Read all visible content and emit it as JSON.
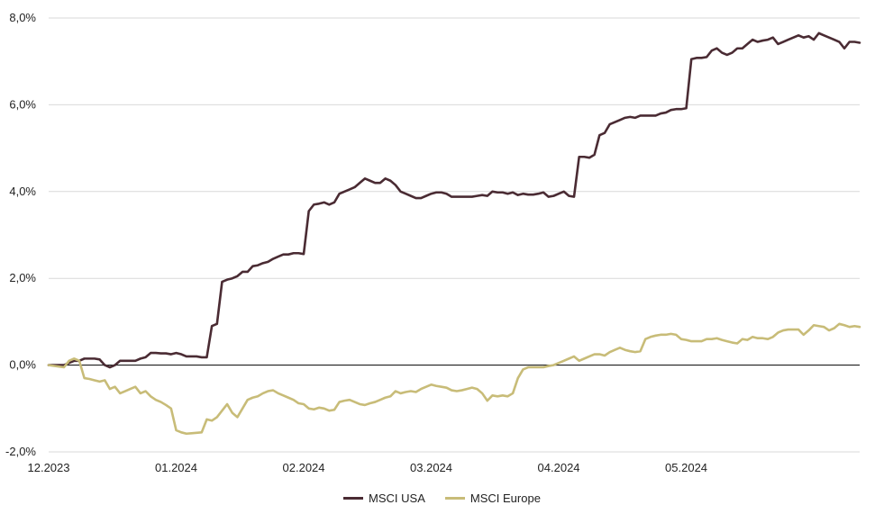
{
  "chart_data": {
    "type": "line",
    "title": "",
    "xlabel": "",
    "ylabel": "",
    "ylim": [
      -2.0,
      8.0
    ],
    "yticks": [
      -2.0,
      0.0,
      2.0,
      4.0,
      6.0,
      8.0
    ],
    "ytick_labels": [
      "-2,0%",
      "0,0%",
      "2,0%",
      "4,0%",
      "6,0%",
      "8,0%"
    ],
    "xlim": [
      0,
      148
    ],
    "xticks": [
      0,
      25,
      50,
      75,
      100,
      125
    ],
    "xtick_labels": [
      "12.2023",
      "01.2024",
      "02.2024",
      "03.2024",
      "04.2024",
      "05.2024"
    ],
    "grid": "horizontal",
    "zero_line": true,
    "legend_position": "bottom-center",
    "series": [
      {
        "name": "MSCI USA",
        "color": "#4a2b33",
        "points": [
          [
            0,
            0.0
          ],
          [
            3,
            0.0
          ],
          [
            4,
            0.05
          ],
          [
            5,
            0.1
          ],
          [
            6,
            0.1
          ],
          [
            7,
            0.15
          ],
          [
            8,
            0.15
          ],
          [
            9,
            0.15
          ],
          [
            10,
            0.13
          ],
          [
            11,
            0.0
          ],
          [
            12,
            -0.05
          ],
          [
            13,
            0.0
          ],
          [
            14,
            0.1
          ],
          [
            15,
            0.1
          ],
          [
            16,
            0.1
          ],
          [
            17,
            0.1
          ],
          [
            18,
            0.15
          ],
          [
            19,
            0.18
          ],
          [
            20,
            0.28
          ],
          [
            21,
            0.28
          ],
          [
            22,
            0.27
          ],
          [
            23,
            0.27
          ],
          [
            24,
            0.25
          ],
          [
            25,
            0.28
          ],
          [
            26,
            0.25
          ],
          [
            27,
            0.2
          ],
          [
            28,
            0.2
          ],
          [
            29,
            0.2
          ],
          [
            30,
            0.18
          ],
          [
            31,
            0.18
          ],
          [
            32,
            0.9
          ],
          [
            33,
            0.95
          ],
          [
            34,
            1.92
          ],
          [
            35,
            1.97
          ],
          [
            36,
            2.0
          ],
          [
            37,
            2.05
          ],
          [
            38,
            2.15
          ],
          [
            39,
            2.15
          ],
          [
            40,
            2.28
          ],
          [
            41,
            2.3
          ],
          [
            42,
            2.35
          ],
          [
            43,
            2.38
          ],
          [
            44,
            2.45
          ],
          [
            45,
            2.5
          ],
          [
            46,
            2.55
          ],
          [
            47,
            2.55
          ],
          [
            48,
            2.58
          ],
          [
            49,
            2.58
          ],
          [
            50,
            2.56
          ],
          [
            51,
            3.55
          ],
          [
            52,
            3.7
          ],
          [
            53,
            3.72
          ],
          [
            54,
            3.75
          ],
          [
            55,
            3.7
          ],
          [
            56,
            3.75
          ],
          [
            57,
            3.95
          ],
          [
            58,
            4.0
          ],
          [
            59,
            4.05
          ],
          [
            60,
            4.1
          ],
          [
            61,
            4.2
          ],
          [
            62,
            4.3
          ],
          [
            63,
            4.25
          ],
          [
            64,
            4.2
          ],
          [
            65,
            4.2
          ],
          [
            66,
            4.3
          ],
          [
            67,
            4.25
          ],
          [
            68,
            4.15
          ],
          [
            69,
            4.0
          ],
          [
            70,
            3.95
          ],
          [
            71,
            3.9
          ],
          [
            72,
            3.85
          ],
          [
            73,
            3.85
          ],
          [
            74,
            3.9
          ],
          [
            75,
            3.95
          ],
          [
            76,
            3.98
          ],
          [
            77,
            3.98
          ],
          [
            78,
            3.95
          ],
          [
            79,
            3.88
          ],
          [
            80,
            3.88
          ],
          [
            81,
            3.88
          ],
          [
            82,
            3.88
          ],
          [
            83,
            3.88
          ],
          [
            84,
            3.9
          ],
          [
            85,
            3.92
          ],
          [
            86,
            3.9
          ],
          [
            87,
            4.0
          ],
          [
            88,
            3.98
          ],
          [
            89,
            3.98
          ],
          [
            90,
            3.95
          ],
          [
            91,
            3.98
          ],
          [
            92,
            3.92
          ],
          [
            93,
            3.95
          ],
          [
            94,
            3.93
          ],
          [
            95,
            3.93
          ],
          [
            96,
            3.95
          ],
          [
            97,
            3.98
          ],
          [
            98,
            3.88
          ],
          [
            99,
            3.9
          ],
          [
            100,
            3.95
          ],
          [
            101,
            4.0
          ],
          [
            102,
            3.9
          ],
          [
            103,
            3.88
          ],
          [
            104,
            4.8
          ],
          [
            105,
            4.8
          ],
          [
            106,
            4.78
          ],
          [
            107,
            4.85
          ],
          [
            108,
            5.3
          ],
          [
            109,
            5.35
          ],
          [
            110,
            5.55
          ],
          [
            111,
            5.6
          ],
          [
            112,
            5.65
          ],
          [
            113,
            5.7
          ],
          [
            114,
            5.72
          ],
          [
            115,
            5.7
          ],
          [
            116,
            5.75
          ],
          [
            117,
            5.75
          ],
          [
            118,
            5.75
          ],
          [
            119,
            5.75
          ],
          [
            120,
            5.8
          ],
          [
            121,
            5.82
          ],
          [
            122,
            5.88
          ],
          [
            123,
            5.9
          ],
          [
            124,
            5.9
          ],
          [
            125,
            5.92
          ],
          [
            126,
            7.05
          ],
          [
            127,
            7.08
          ],
          [
            128,
            7.08
          ],
          [
            129,
            7.1
          ],
          [
            130,
            7.25
          ],
          [
            131,
            7.3
          ],
          [
            132,
            7.2
          ],
          [
            133,
            7.15
          ],
          [
            134,
            7.2
          ],
          [
            135,
            7.3
          ],
          [
            136,
            7.3
          ],
          [
            137,
            7.4
          ],
          [
            138,
            7.5
          ],
          [
            139,
            7.45
          ],
          [
            140,
            7.48
          ],
          [
            141,
            7.5
          ],
          [
            142,
            7.55
          ],
          [
            143,
            7.4
          ],
          [
            144,
            7.45
          ],
          [
            145,
            7.5
          ],
          [
            146,
            7.55
          ],
          [
            147,
            7.6
          ],
          [
            148,
            7.55
          ],
          [
            149,
            7.58
          ],
          [
            150,
            7.5
          ],
          [
            151,
            7.65
          ],
          [
            152,
            7.6
          ],
          [
            153,
            7.55
          ],
          [
            154,
            7.5
          ],
          [
            155,
            7.45
          ],
          [
            156,
            7.3
          ],
          [
            157,
            7.45
          ],
          [
            158,
            7.45
          ],
          [
            159,
            7.43
          ]
        ]
      },
      {
        "name": "MSCI Europe",
        "color": "#c8bc78",
        "points": [
          [
            0,
            0.0
          ],
          [
            3,
            -0.05
          ],
          [
            4,
            0.1
          ],
          [
            5,
            0.15
          ],
          [
            6,
            0.1
          ],
          [
            7,
            -0.3
          ],
          [
            8,
            -0.32
          ],
          [
            9,
            -0.35
          ],
          [
            10,
            -0.38
          ],
          [
            11,
            -0.35
          ],
          [
            12,
            -0.55
          ],
          [
            13,
            -0.5
          ],
          [
            14,
            -0.65
          ],
          [
            15,
            -0.6
          ],
          [
            16,
            -0.55
          ],
          [
            17,
            -0.5
          ],
          [
            18,
            -0.65
          ],
          [
            19,
            -0.6
          ],
          [
            20,
            -0.72
          ],
          [
            21,
            -0.8
          ],
          [
            22,
            -0.85
          ],
          [
            23,
            -0.92
          ],
          [
            24,
            -1.0
          ],
          [
            25,
            -1.5
          ],
          [
            26,
            -1.55
          ],
          [
            27,
            -1.58
          ],
          [
            28,
            -1.57
          ],
          [
            29,
            -1.56
          ],
          [
            30,
            -1.55
          ],
          [
            31,
            -1.25
          ],
          [
            32,
            -1.28
          ],
          [
            33,
            -1.2
          ],
          [
            34,
            -1.05
          ],
          [
            35,
            -0.9
          ],
          [
            36,
            -1.1
          ],
          [
            37,
            -1.2
          ],
          [
            38,
            -1.0
          ],
          [
            39,
            -0.8
          ],
          [
            40,
            -0.75
          ],
          [
            41,
            -0.72
          ],
          [
            42,
            -0.65
          ],
          [
            43,
            -0.6
          ],
          [
            44,
            -0.58
          ],
          [
            45,
            -0.65
          ],
          [
            46,
            -0.7
          ],
          [
            47,
            -0.75
          ],
          [
            48,
            -0.8
          ],
          [
            49,
            -0.88
          ],
          [
            50,
            -0.9
          ],
          [
            51,
            -1.0
          ],
          [
            52,
            -1.02
          ],
          [
            53,
            -0.98
          ],
          [
            54,
            -1.0
          ],
          [
            55,
            -1.05
          ],
          [
            56,
            -1.03
          ],
          [
            57,
            -0.85
          ],
          [
            58,
            -0.82
          ],
          [
            59,
            -0.8
          ],
          [
            60,
            -0.85
          ],
          [
            61,
            -0.9
          ],
          [
            62,
            -0.92
          ],
          [
            63,
            -0.88
          ],
          [
            64,
            -0.85
          ],
          [
            65,
            -0.8
          ],
          [
            66,
            -0.75
          ],
          [
            67,
            -0.72
          ],
          [
            68,
            -0.6
          ],
          [
            69,
            -0.65
          ],
          [
            70,
            -0.62
          ],
          [
            71,
            -0.6
          ],
          [
            72,
            -0.62
          ],
          [
            73,
            -0.55
          ],
          [
            74,
            -0.5
          ],
          [
            75,
            -0.45
          ],
          [
            76,
            -0.48
          ],
          [
            77,
            -0.5
          ],
          [
            78,
            -0.52
          ],
          [
            79,
            -0.58
          ],
          [
            80,
            -0.6
          ],
          [
            81,
            -0.58
          ],
          [
            82,
            -0.55
          ],
          [
            83,
            -0.52
          ],
          [
            84,
            -0.55
          ],
          [
            85,
            -0.65
          ],
          [
            86,
            -0.82
          ],
          [
            87,
            -0.7
          ],
          [
            88,
            -0.72
          ],
          [
            89,
            -0.7
          ],
          [
            90,
            -0.72
          ],
          [
            91,
            -0.65
          ],
          [
            92,
            -0.3
          ],
          [
            93,
            -0.1
          ],
          [
            94,
            -0.05
          ],
          [
            95,
            -0.05
          ],
          [
            96,
            -0.05
          ],
          [
            97,
            -0.05
          ],
          [
            98,
            -0.02
          ],
          [
            99,
            0.0
          ],
          [
            100,
            0.05
          ],
          [
            101,
            0.1
          ],
          [
            102,
            0.15
          ],
          [
            103,
            0.2
          ],
          [
            104,
            0.1
          ],
          [
            105,
            0.15
          ],
          [
            106,
            0.2
          ],
          [
            107,
            0.25
          ],
          [
            108,
            0.25
          ],
          [
            109,
            0.22
          ],
          [
            110,
            0.3
          ],
          [
            111,
            0.35
          ],
          [
            112,
            0.4
          ],
          [
            113,
            0.35
          ],
          [
            114,
            0.32
          ],
          [
            115,
            0.3
          ],
          [
            116,
            0.32
          ],
          [
            117,
            0.6
          ],
          [
            118,
            0.65
          ],
          [
            119,
            0.68
          ],
          [
            120,
            0.7
          ],
          [
            121,
            0.7
          ],
          [
            122,
            0.72
          ],
          [
            123,
            0.7
          ],
          [
            124,
            0.6
          ],
          [
            125,
            0.58
          ],
          [
            126,
            0.55
          ],
          [
            127,
            0.55
          ],
          [
            128,
            0.55
          ],
          [
            129,
            0.6
          ],
          [
            130,
            0.6
          ],
          [
            131,
            0.62
          ],
          [
            132,
            0.58
          ],
          [
            133,
            0.55
          ],
          [
            134,
            0.52
          ],
          [
            135,
            0.5
          ],
          [
            136,
            0.6
          ],
          [
            137,
            0.58
          ],
          [
            138,
            0.65
          ],
          [
            139,
            0.62
          ],
          [
            140,
            0.62
          ],
          [
            141,
            0.6
          ],
          [
            142,
            0.65
          ],
          [
            143,
            0.75
          ],
          [
            144,
            0.8
          ],
          [
            145,
            0.82
          ],
          [
            146,
            0.82
          ],
          [
            147,
            0.82
          ],
          [
            148,
            0.7
          ],
          [
            149,
            0.8
          ],
          [
            150,
            0.92
          ],
          [
            151,
            0.9
          ],
          [
            152,
            0.88
          ],
          [
            153,
            0.8
          ],
          [
            154,
            0.85
          ],
          [
            155,
            0.95
          ],
          [
            156,
            0.92
          ],
          [
            157,
            0.88
          ],
          [
            158,
            0.9
          ],
          [
            159,
            0.88
          ]
        ]
      }
    ]
  }
}
